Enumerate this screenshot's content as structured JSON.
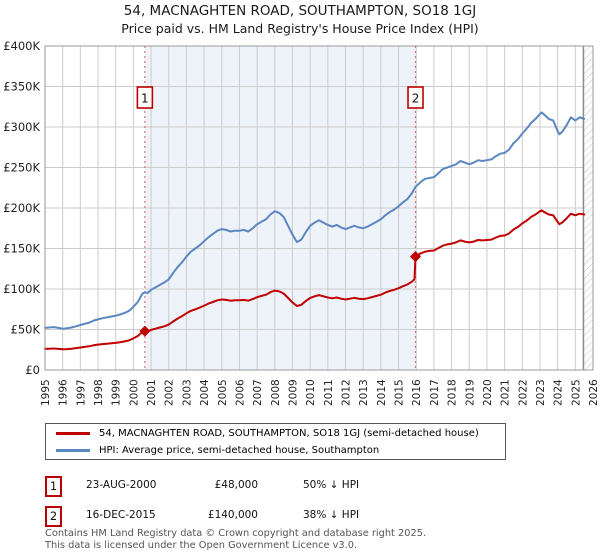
{
  "title": "54, MACNAGHTEN ROAD, SOUTHAMPTON, SO18 1GJ",
  "subtitle": "Price paid vs. HM Land Registry's House Price Index (HPI)",
  "legend": {
    "items": [
      {
        "label": "54, MACNAGHTEN ROAD, SOUTHAMPTON, SO18 1GJ (semi-detached house)",
        "color": "#c00000"
      },
      {
        "label": "HPI: Average price, semi-detached house, Southampton",
        "color": "#5b87c0"
      }
    ]
  },
  "annotations": [
    {
      "num": "1",
      "date": "23-AUG-2000",
      "price": "£48,000",
      "delta": "50% ↓ HPI"
    },
    {
      "num": "2",
      "date": "16-DEC-2015",
      "price": "£140,000",
      "delta": "38% ↓ HPI"
    }
  ],
  "footer": {
    "line1": "Contains HM Land Registry data © Crown copyright and database right 2025.",
    "line2": "This data is licensed under the Open Government Licence v3.0."
  },
  "chart_data": {
    "type": "line",
    "title": "54, MACNAGHTEN ROAD, SOUTHAMPTON, SO18 1GJ",
    "subtitle": "Price paid vs. HM Land Registry's House Price Index (HPI)",
    "unit": "GBP thousands",
    "grid": true,
    "legend_position": "bottom",
    "x_axis": {
      "min": 1995,
      "max": 2026,
      "tick_years": [
        1995,
        1996,
        1997,
        1998,
        1999,
        2000,
        2001,
        2002,
        2003,
        2004,
        2005,
        2006,
        2007,
        2008,
        2009,
        2010,
        2011,
        2012,
        2013,
        2014,
        2015,
        2016,
        2017,
        2018,
        2019,
        2020,
        2021,
        2022,
        2023,
        2024,
        2025,
        2026
      ]
    },
    "y_axis": {
      "max_k": 400,
      "ticks_k": [
        0,
        50,
        100,
        150,
        200,
        250,
        300,
        350,
        400
      ],
      "tick_labels": [
        "£0",
        "£50K",
        "£100K",
        "£150K",
        "£200K",
        "£250K",
        "£300K",
        "£350K",
        "£400K"
      ]
    },
    "shaded_span": {
      "from": 2000.65,
      "to": 2015.96
    },
    "future_hatch_from": 2025.46,
    "colors": {
      "price": "#c00000",
      "hpi": "#5b87c0",
      "shade": "#eef2f9",
      "grid": "#cccccc",
      "border": "#999999",
      "sale_line": "#e07070",
      "sale_badge": "#bb0000",
      "hatch_line": "#c4c4c4",
      "hatch_edge": "#8a8a8a",
      "axis_text": "#222222"
    },
    "sale_markers": [
      {
        "label": "1",
        "year": 2000.65,
        "value_k": 48,
        "date": "23-AUG-2000",
        "price_gbp": 48000,
        "vs_hpi": "50% below HPI"
      },
      {
        "label": "2",
        "year": 2015.96,
        "value_k": 140,
        "date": "16-DEC-2015",
        "price_gbp": 140000,
        "vs_hpi": "38% below HPI"
      }
    ],
    "series": [
      {
        "name": "54, MACNAGHTEN ROAD, SOUTHAMPTON, SO18 1GJ (semi-detached house)",
        "color": "#c00000",
        "points": [
          [
            1995,
            26
          ],
          [
            1995.25,
            26.3
          ],
          [
            1995.5,
            26.5
          ],
          [
            1995.75,
            26
          ],
          [
            1996,
            25.5
          ],
          [
            1996.25,
            25.8
          ],
          [
            1996.5,
            26.3
          ],
          [
            1996.75,
            27
          ],
          [
            1997,
            27.8
          ],
          [
            1997.25,
            28.5
          ],
          [
            1997.5,
            29.3
          ],
          [
            1997.75,
            30.5
          ],
          [
            1998,
            31.3
          ],
          [
            1998.25,
            32
          ],
          [
            1998.5,
            32.5
          ],
          [
            1998.75,
            33
          ],
          [
            1999,
            33.5
          ],
          [
            1999.25,
            34.3
          ],
          [
            1999.5,
            35.3
          ],
          [
            1999.75,
            36.5
          ],
          [
            2000,
            39
          ],
          [
            2000.25,
            42
          ],
          [
            2000.4,
            45
          ],
          [
            2000.65,
            48
          ],
          [
            2000.8,
            47.5
          ],
          [
            2001,
            49.5
          ],
          [
            2001.25,
            51
          ],
          [
            2001.5,
            52.5
          ],
          [
            2001.75,
            54
          ],
          [
            2002,
            56
          ],
          [
            2002.25,
            60
          ],
          [
            2002.5,
            63.5
          ],
          [
            2002.75,
            66.5
          ],
          [
            2003,
            70
          ],
          [
            2003.25,
            73
          ],
          [
            2003.5,
            75
          ],
          [
            2003.75,
            77
          ],
          [
            2004,
            79.5
          ],
          [
            2004.25,
            82
          ],
          [
            2004.5,
            84
          ],
          [
            2004.75,
            86
          ],
          [
            2005,
            87
          ],
          [
            2005.25,
            86.5
          ],
          [
            2005.5,
            85.5
          ],
          [
            2005.75,
            86
          ],
          [
            2006,
            86
          ],
          [
            2006.25,
            86.5
          ],
          [
            2006.5,
            85.5
          ],
          [
            2006.75,
            87.5
          ],
          [
            2007,
            90
          ],
          [
            2007.25,
            91.5
          ],
          [
            2007.5,
            93
          ],
          [
            2007.75,
            96
          ],
          [
            2008,
            98
          ],
          [
            2008.25,
            97
          ],
          [
            2008.5,
            94.5
          ],
          [
            2008.75,
            89
          ],
          [
            2009,
            83.5
          ],
          [
            2009.25,
            79
          ],
          [
            2009.5,
            80.5
          ],
          [
            2009.75,
            85
          ],
          [
            2010,
            89
          ],
          [
            2010.25,
            91
          ],
          [
            2010.5,
            92.5
          ],
          [
            2010.75,
            91
          ],
          [
            2011,
            89.5
          ],
          [
            2011.25,
            88.5
          ],
          [
            2011.5,
            89.5
          ],
          [
            2011.75,
            88
          ],
          [
            2012,
            87
          ],
          [
            2012.25,
            88
          ],
          [
            2012.5,
            89
          ],
          [
            2012.75,
            88
          ],
          [
            2013,
            87.5
          ],
          [
            2013.25,
            88.5
          ],
          [
            2013.5,
            90
          ],
          [
            2013.75,
            91.5
          ],
          [
            2014,
            93
          ],
          [
            2014.25,
            95.5
          ],
          [
            2014.5,
            97.5
          ],
          [
            2014.75,
            99
          ],
          [
            2015,
            101
          ],
          [
            2015.25,
            103.5
          ],
          [
            2015.5,
            105.5
          ],
          [
            2015.75,
            109
          ],
          [
            2015.9,
            112
          ],
          [
            2015.96,
            140
          ],
          [
            2016.25,
            144
          ],
          [
            2016.5,
            146
          ],
          [
            2016.75,
            147
          ],
          [
            2017,
            147.5
          ],
          [
            2017.25,
            150.5
          ],
          [
            2017.5,
            153.5
          ],
          [
            2017.75,
            155
          ],
          [
            2018,
            156
          ],
          [
            2018.25,
            157.5
          ],
          [
            2018.5,
            160
          ],
          [
            2018.75,
            158.5
          ],
          [
            2019,
            157.5
          ],
          [
            2019.25,
            158.5
          ],
          [
            2019.5,
            160.5
          ],
          [
            2019.75,
            160
          ],
          [
            2020,
            160.5
          ],
          [
            2020.25,
            161
          ],
          [
            2020.5,
            163.5
          ],
          [
            2020.75,
            165.5
          ],
          [
            2021,
            166
          ],
          [
            2021.25,
            168.5
          ],
          [
            2021.5,
            173.5
          ],
          [
            2021.75,
            176.5
          ],
          [
            2022,
            181
          ],
          [
            2022.25,
            184.5
          ],
          [
            2022.5,
            189
          ],
          [
            2022.75,
            192
          ],
          [
            2023,
            196
          ],
          [
            2023.1,
            197
          ],
          [
            2023.25,
            195
          ],
          [
            2023.5,
            192
          ],
          [
            2023.75,
            191
          ],
          [
            2024,
            183
          ],
          [
            2024.1,
            180
          ],
          [
            2024.25,
            182
          ],
          [
            2024.5,
            187
          ],
          [
            2024.75,
            193
          ],
          [
            2025,
            191
          ],
          [
            2025.25,
            193
          ],
          [
            2025.5,
            192
          ]
        ]
      },
      {
        "name": "HPI: Average price, semi-detached house, Southampton",
        "color": "#5b87c0",
        "points": [
          [
            1995,
            52
          ],
          [
            1995.25,
            52.5
          ],
          [
            1995.5,
            53
          ],
          [
            1995.75,
            52
          ],
          [
            1996,
            51
          ],
          [
            1996.25,
            51.5
          ],
          [
            1996.5,
            52.5
          ],
          [
            1996.75,
            54
          ],
          [
            1997,
            55.5
          ],
          [
            1997.25,
            57
          ],
          [
            1997.5,
            58.5
          ],
          [
            1997.75,
            61
          ],
          [
            1998,
            62.5
          ],
          [
            1998.25,
            64
          ],
          [
            1998.5,
            65
          ],
          [
            1998.75,
            66
          ],
          [
            1999,
            67
          ],
          [
            1999.25,
            68.5
          ],
          [
            1999.5,
            70.5
          ],
          [
            1999.75,
            73
          ],
          [
            2000,
            78
          ],
          [
            2000.25,
            84
          ],
          [
            2000.4,
            90
          ],
          [
            2000.5,
            94
          ],
          [
            2000.65,
            96
          ],
          [
            2000.8,
            95
          ],
          [
            2001,
            99
          ],
          [
            2001.25,
            102
          ],
          [
            2001.5,
            105
          ],
          [
            2001.75,
            108
          ],
          [
            2002,
            112
          ],
          [
            2002.25,
            120
          ],
          [
            2002.5,
            127
          ],
          [
            2002.75,
            133
          ],
          [
            2003,
            140
          ],
          [
            2003.25,
            146
          ],
          [
            2003.5,
            150
          ],
          [
            2003.75,
            154
          ],
          [
            2004,
            159
          ],
          [
            2004.25,
            164
          ],
          [
            2004.5,
            168
          ],
          [
            2004.75,
            172
          ],
          [
            2005,
            174
          ],
          [
            2005.25,
            173
          ],
          [
            2005.5,
            171
          ],
          [
            2005.75,
            172
          ],
          [
            2006,
            172
          ],
          [
            2006.25,
            173
          ],
          [
            2006.5,
            171
          ],
          [
            2006.75,
            175
          ],
          [
            2007,
            180
          ],
          [
            2007.25,
            183
          ],
          [
            2007.5,
            186
          ],
          [
            2007.75,
            192
          ],
          [
            2008,
            196
          ],
          [
            2008.25,
            194
          ],
          [
            2008.5,
            189
          ],
          [
            2008.75,
            178
          ],
          [
            2009,
            167
          ],
          [
            2009.25,
            158
          ],
          [
            2009.5,
            161
          ],
          [
            2009.75,
            170
          ],
          [
            2010,
            178
          ],
          [
            2010.25,
            182
          ],
          [
            2010.5,
            185
          ],
          [
            2010.75,
            182
          ],
          [
            2011,
            179
          ],
          [
            2011.25,
            177
          ],
          [
            2011.5,
            179
          ],
          [
            2011.75,
            176
          ],
          [
            2012,
            174
          ],
          [
            2012.25,
            176
          ],
          [
            2012.5,
            178
          ],
          [
            2012.75,
            176
          ],
          [
            2013,
            175
          ],
          [
            2013.25,
            177
          ],
          [
            2013.5,
            180
          ],
          [
            2013.75,
            183
          ],
          [
            2014,
            186
          ],
          [
            2014.25,
            191
          ],
          [
            2014.5,
            195
          ],
          [
            2014.75,
            198
          ],
          [
            2015,
            202
          ],
          [
            2015.25,
            207
          ],
          [
            2015.5,
            211
          ],
          [
            2015.75,
            218
          ],
          [
            2015.96,
            226
          ],
          [
            2016.25,
            232
          ],
          [
            2016.5,
            236
          ],
          [
            2016.75,
            237
          ],
          [
            2017,
            238
          ],
          [
            2017.25,
            243
          ],
          [
            2017.5,
            248
          ],
          [
            2017.75,
            250
          ],
          [
            2018,
            252
          ],
          [
            2018.25,
            254
          ],
          [
            2018.5,
            258
          ],
          [
            2018.75,
            256
          ],
          [
            2019,
            254
          ],
          [
            2019.25,
            256
          ],
          [
            2019.5,
            259
          ],
          [
            2019.75,
            258
          ],
          [
            2020,
            259
          ],
          [
            2020.25,
            260
          ],
          [
            2020.5,
            264
          ],
          [
            2020.75,
            267
          ],
          [
            2021,
            268
          ],
          [
            2021.25,
            272
          ],
          [
            2021.5,
            280
          ],
          [
            2021.75,
            285
          ],
          [
            2022,
            292
          ],
          [
            2022.25,
            298
          ],
          [
            2022.5,
            305
          ],
          [
            2022.75,
            310
          ],
          [
            2023,
            316
          ],
          [
            2023.1,
            318
          ],
          [
            2023.25,
            315
          ],
          [
            2023.5,
            310
          ],
          [
            2023.75,
            308
          ],
          [
            2024,
            295
          ],
          [
            2024.1,
            291
          ],
          [
            2024.25,
            294
          ],
          [
            2024.5,
            302
          ],
          [
            2024.75,
            312
          ],
          [
            2025,
            308
          ],
          [
            2025.25,
            312
          ],
          [
            2025.5,
            310
          ]
        ]
      }
    ]
  }
}
